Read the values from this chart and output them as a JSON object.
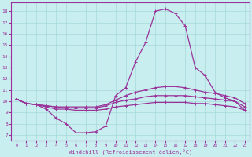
{
  "xlabel": "Windchill (Refroidissement éolien,°C)",
  "bg_color": "#c8eef0",
  "grid_color": "#a8d8d8",
  "line_color": "#993399",
  "x_ticks": [
    0,
    1,
    2,
    3,
    4,
    5,
    6,
    7,
    8,
    9,
    10,
    11,
    12,
    13,
    14,
    15,
    16,
    17,
    18,
    19,
    20,
    21,
    22,
    23
  ],
  "y_ticks": [
    7,
    8,
    9,
    10,
    11,
    12,
    13,
    14,
    15,
    16,
    17,
    18
  ],
  "ylim": [
    6.5,
    18.8
  ],
  "xlim": [
    -0.5,
    23.5
  ],
  "lines": [
    {
      "x": [
        0,
        1,
        2,
        3,
        4,
        5,
        6,
        7,
        8,
        9,
        10,
        11,
        12,
        13,
        14,
        15,
        16,
        17,
        18,
        19,
        20,
        21,
        22,
        23
      ],
      "y": [
        10.2,
        9.8,
        9.7,
        9.5,
        9.3,
        9.3,
        9.2,
        9.2,
        9.2,
        9.3,
        9.5,
        9.6,
        9.7,
        9.8,
        9.9,
        9.9,
        9.9,
        9.9,
        9.8,
        9.8,
        9.7,
        9.6,
        9.5,
        9.2
      ]
    },
    {
      "x": [
        0,
        1,
        2,
        3,
        4,
        5,
        6,
        7,
        8,
        9,
        10,
        11,
        12,
        13,
        14,
        15,
        16,
        17,
        18,
        19,
        20,
        21,
        22,
        23
      ],
      "y": [
        10.2,
        9.8,
        9.7,
        9.6,
        9.5,
        9.4,
        9.4,
        9.4,
        9.4,
        9.6,
        9.9,
        10.1,
        10.2,
        10.4,
        10.5,
        10.5,
        10.5,
        10.5,
        10.4,
        10.3,
        10.2,
        10.1,
        10.0,
        9.5
      ]
    },
    {
      "x": [
        0,
        1,
        2,
        3,
        4,
        5,
        6,
        7,
        8,
        9,
        10,
        11,
        12,
        13,
        14,
        15,
        16,
        17,
        18,
        19,
        20,
        21,
        22,
        23
      ],
      "y": [
        10.2,
        9.8,
        9.7,
        9.6,
        9.5,
        9.5,
        9.5,
        9.5,
        9.5,
        9.7,
        10.1,
        10.5,
        10.8,
        11.0,
        11.2,
        11.3,
        11.3,
        11.2,
        11.0,
        10.8,
        10.7,
        10.5,
        10.3,
        9.8
      ]
    },
    {
      "x": [
        0,
        1,
        2,
        3,
        4,
        5,
        6,
        7,
        8,
        9,
        10,
        11,
        12,
        13,
        14,
        15,
        16,
        17,
        18,
        19,
        20,
        21,
        22,
        23
      ],
      "y": [
        10.2,
        9.8,
        9.7,
        9.3,
        8.5,
        8.0,
        7.2,
        7.2,
        7.3,
        7.8,
        10.5,
        11.2,
        13.5,
        15.2,
        18.0,
        18.2,
        17.8,
        16.7,
        13.0,
        12.3,
        10.8,
        10.3,
        10.0,
        9.2
      ]
    }
  ]
}
